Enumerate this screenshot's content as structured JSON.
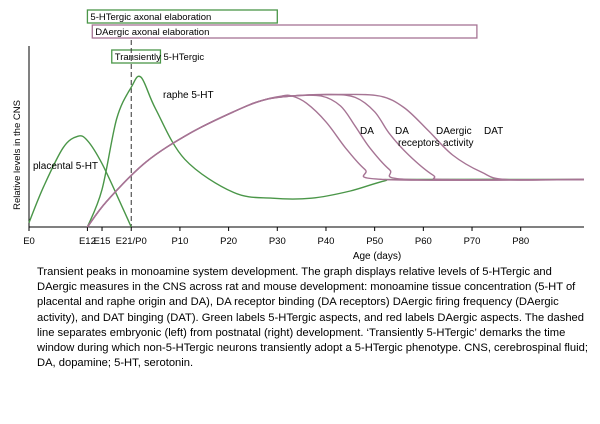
{
  "chart_data": {
    "type": "line",
    "title": "",
    "xlabel": "Age (days)",
    "ylabel": "Relative levels in the CNS",
    "x_ticks": [
      "E0",
      "E12",
      "E15",
      "E21/P0",
      "P10",
      "P20",
      "P30",
      "P40",
      "P50",
      "P60",
      "P70",
      "P80"
    ],
    "x_tick_days": [
      0,
      12,
      15,
      21,
      31,
      41,
      51,
      61,
      71,
      81,
      91,
      101
    ],
    "xlim": [
      0,
      114
    ],
    "ylim": [
      0,
      100
    ],
    "grid": false,
    "divider": {
      "label": "embryonic / postnatal boundary",
      "x": 21
    },
    "colors": {
      "serotonergic": "#4a9648",
      "dopaminergic": "#a67494"
    },
    "periods": [
      {
        "label": "5-HTergic axonal elaboration",
        "start": 12,
        "end": 51,
        "color": "serotonergic"
      },
      {
        "label": "DAergic axonal elaboration",
        "start": 13,
        "end": 92,
        "color": "dopaminergic"
      },
      {
        "label": "Transiently 5-HTergic",
        "start": 17,
        "end": 27,
        "color": "serotonergic"
      }
    ],
    "series": [
      {
        "name": "placental 5-HT",
        "color": "serotonergic",
        "points": [
          [
            0,
            3
          ],
          [
            3,
            28
          ],
          [
            7,
            55
          ],
          [
            10,
            63
          ],
          [
            12,
            60
          ],
          [
            15,
            44
          ],
          [
            19,
            15
          ],
          [
            21,
            0
          ]
        ]
      },
      {
        "name": "raphe 5-HT",
        "color": "serotonergic",
        "points": [
          [
            12,
            0
          ],
          [
            15,
            26
          ],
          [
            18,
            75
          ],
          [
            21,
            97
          ],
          [
            23,
            104
          ],
          [
            26,
            82
          ],
          [
            32,
            47
          ],
          [
            42,
            24
          ],
          [
            50,
            20
          ],
          [
            58,
            20
          ],
          [
            66,
            25
          ],
          [
            73,
            32
          ],
          [
            77,
            33
          ],
          [
            114,
            33
          ]
        ]
      },
      {
        "name": "DA",
        "color": "dopaminergic",
        "points": [
          [
            12,
            0
          ],
          [
            16,
            18
          ],
          [
            24,
            45
          ],
          [
            33,
            65
          ],
          [
            42,
            80
          ],
          [
            48,
            88
          ],
          [
            52,
            91
          ],
          [
            54,
            91
          ],
          [
            57,
            86
          ],
          [
            61,
            73
          ],
          [
            65,
            55
          ],
          [
            69,
            40
          ],
          [
            73,
            33
          ],
          [
            114,
            33
          ]
        ]
      },
      {
        "name": "DA receptors",
        "color": "dopaminergic",
        "points": [
          [
            12,
            0
          ],
          [
            16,
            18
          ],
          [
            24,
            45
          ],
          [
            33,
            65
          ],
          [
            42,
            80
          ],
          [
            48,
            88
          ],
          [
            54,
            91
          ],
          [
            60,
            91
          ],
          [
            64,
            84
          ],
          [
            67,
            70
          ],
          [
            70,
            55
          ],
          [
            74,
            40
          ],
          [
            78,
            33
          ],
          [
            114,
            33
          ]
        ]
      },
      {
        "name": "DAergic activity",
        "color": "dopaminergic",
        "points": [
          [
            12,
            0
          ],
          [
            16,
            18
          ],
          [
            24,
            45
          ],
          [
            33,
            65
          ],
          [
            42,
            80
          ],
          [
            48,
            88
          ],
          [
            54,
            91
          ],
          [
            62,
            92
          ],
          [
            67,
            90
          ],
          [
            71,
            80
          ],
          [
            74,
            65
          ],
          [
            78,
            50
          ],
          [
            83,
            36
          ],
          [
            86,
            33
          ],
          [
            114,
            33
          ]
        ]
      },
      {
        "name": "DAT",
        "color": "dopaminergic",
        "points": [
          [
            12,
            0
          ],
          [
            16,
            18
          ],
          [
            24,
            45
          ],
          [
            33,
            65
          ],
          [
            42,
            80
          ],
          [
            48,
            88
          ],
          [
            54,
            91
          ],
          [
            64,
            92
          ],
          [
            72,
            91
          ],
          [
            77,
            83
          ],
          [
            82,
            67
          ],
          [
            87,
            50
          ],
          [
            93,
            38
          ],
          [
            98,
            33
          ],
          [
            114,
            33
          ]
        ]
      }
    ],
    "annotations": [
      "placental 5-HT",
      "raphe 5-HT",
      "DA",
      "DA",
      "receptors",
      "DAergic",
      "activity",
      "DAT"
    ]
  },
  "caption": "Transient peaks in monoamine  system development.  The graph displays relative levels of 5-HTergic and DAergic measures in the CNS across rat and mouse development: monoamine tissue concentration (5-HT of placental and raphe origin and DA), DA receptor binding (DA receptors) DAergic firing frequency (DAergic activity), and DAT binging (DAT). Green labels 5-HTergic aspects, and red labels DAergic aspects. The dashed line separates embryonic (left) from postnatal (right) development.  ‘Transiently 5-HTergic’ demarks the time window  during which non-5-HTergic neurons transiently adopt a 5-HTergic phenotype. CNS, cerebrospinal fluid; DA, dopamine;  5-HT, serotonin."
}
